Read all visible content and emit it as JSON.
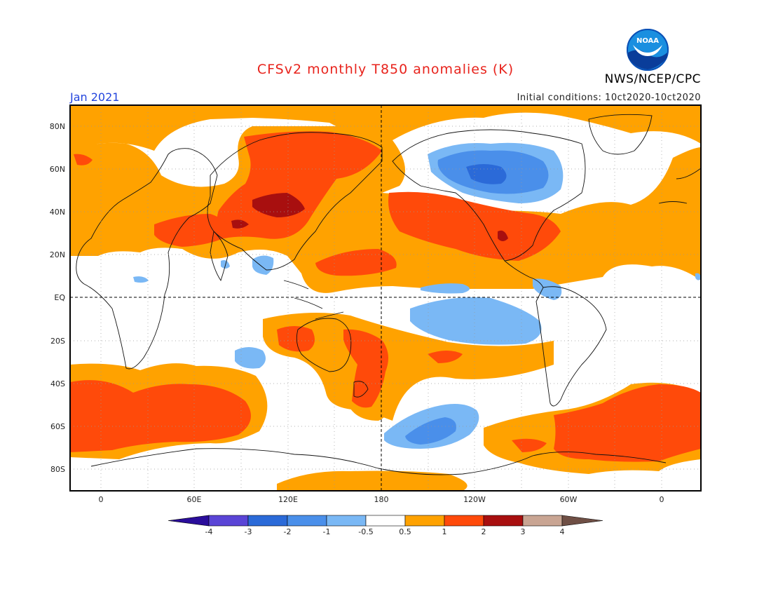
{
  "title": "CFSv2 monthly T850 anomalies (K)",
  "agency": "NWS/NCEP/CPC",
  "valid_month": "Jan 2021",
  "initial_conditions": "Initial conditions: 10ct2020-10ct2020",
  "logo": {
    "icon": "noaa-logo-icon",
    "text": "NOAA"
  },
  "lat_ticks": [
    "80N",
    "60N",
    "40N",
    "20N",
    "EQ",
    "20S",
    "40S",
    "60S",
    "80S"
  ],
  "lon_ticks": [
    "0",
    "60E",
    "120E",
    "180",
    "120W",
    "60W",
    "0"
  ],
  "colorbar": {
    "labels": [
      "-4",
      "-3",
      "-2",
      "-1",
      "-0.5",
      "0.5",
      "1",
      "2",
      "3",
      "4"
    ],
    "colors": [
      "#2a0d9b",
      "#5a45d6",
      "#2b6ad8",
      "#4a8fea",
      "#7ab8f5",
      "#ffffff",
      "#ffa200",
      "#ff4a0a",
      "#a80f0f",
      "#c9a593",
      "#6f4f45"
    ]
  },
  "anomaly_colors": {
    "cool_light": "#7ab8f5",
    "cool_mid": "#4a8fea",
    "cool_dark": "#2b6ad8",
    "warm_light": "#ffa200",
    "warm_mid": "#ff4a0a",
    "warm_dark": "#a80f0f"
  }
}
